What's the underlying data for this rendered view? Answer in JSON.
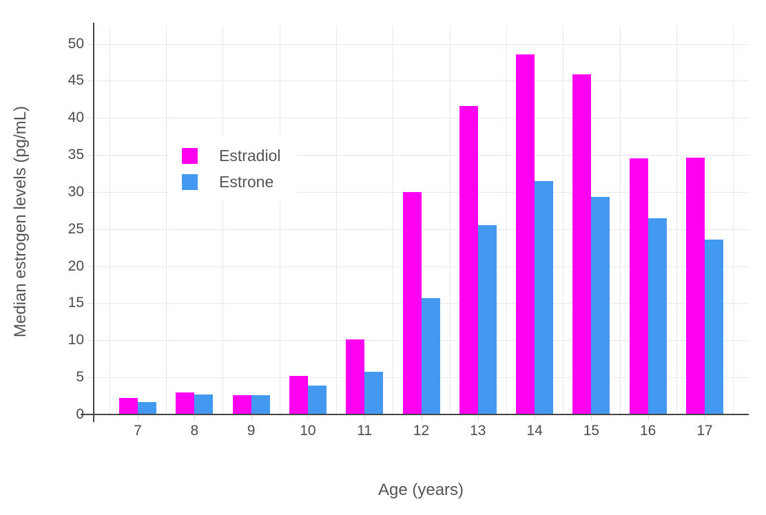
{
  "chart_data": {
    "type": "bar",
    "title": "",
    "xlabel": "Age (years)",
    "ylabel": "Median estrogen levels (pg/mL)",
    "categories": [
      "7",
      "8",
      "9",
      "10",
      "11",
      "12",
      "13",
      "14",
      "15",
      "16",
      "17"
    ],
    "series": [
      {
        "name": "Estradiol",
        "color": "#FF00F0",
        "values": [
          2.2,
          3.0,
          2.6,
          5.2,
          10.1,
          30.0,
          41.6,
          48.6,
          45.9,
          34.5,
          34.6
        ]
      },
      {
        "name": "Estrone",
        "color": "#4398F0",
        "values": [
          1.7,
          2.7,
          2.6,
          3.9,
          5.8,
          15.7,
          25.5,
          31.5,
          29.3,
          26.5,
          23.6
        ]
      }
    ],
    "yticks": [
      0,
      5,
      10,
      15,
      20,
      25,
      30,
      35,
      40,
      45,
      50
    ],
    "ylim": [
      0,
      52.5
    ],
    "grid": true,
    "legend_position": "inside-upper-left",
    "bar_mode": "grouped"
  },
  "colors": {
    "background": "#FFFFFF",
    "gridline": "#E7E7E7",
    "axis_line": "#444444",
    "tick_label": "#4C4C4C",
    "title_text": "#555555"
  }
}
